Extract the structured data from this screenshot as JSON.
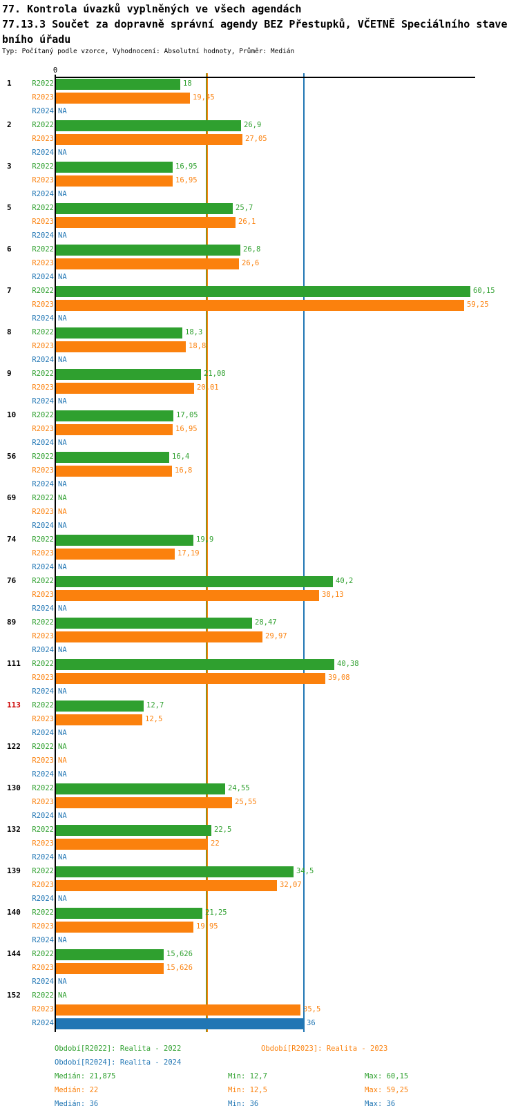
{
  "title": {
    "line1": "77. Kontrola úvazků vyplněných ve všech agendách",
    "line2": "77.13.3 Součet za dopravně správní agendy BEZ Přestupků, VČETNĚ Speciálního stave",
    "line3": "bního úřadu",
    "meta": "Typ: Počítaný podle vzorce, Vyhodnocení: Absolutní hodnoty, Průměr: Medián"
  },
  "chart_data": {
    "type": "bar",
    "orientation": "horizontal",
    "x_range": [
      0,
      61
    ],
    "axis_zero_label": "0",
    "na_label": "NA",
    "grid": "off",
    "series": [
      "R2022",
      "R2023",
      "R2024"
    ],
    "colors": {
      "R2022": "#2FA02F",
      "R2023": "#FB810D",
      "R2024": "#2176B4",
      "highlight": "#CC0000",
      "axis": "#000000"
    },
    "reference_lines": [
      {
        "series": "R2022",
        "stat": "median",
        "value": 21.875,
        "color": "#2FA02F"
      },
      {
        "series": "R2023",
        "stat": "median",
        "value": 22,
        "color": "#FB810D"
      },
      {
        "series": "R2024",
        "stat": "median",
        "value": 36,
        "color": "#2176B4"
      }
    ],
    "groups": [
      {
        "id": "1",
        "highlight": false,
        "values": [
          18,
          19.45,
          null
        ],
        "labels": [
          "18",
          "19,45",
          "NA"
        ]
      },
      {
        "id": "2",
        "highlight": false,
        "values": [
          26.9,
          27.05,
          null
        ],
        "labels": [
          "26,9",
          "27,05",
          "NA"
        ]
      },
      {
        "id": "3",
        "highlight": false,
        "values": [
          16.95,
          16.95,
          null
        ],
        "labels": [
          "16,95",
          "16,95",
          "NA"
        ]
      },
      {
        "id": "5",
        "highlight": false,
        "values": [
          25.7,
          26.1,
          null
        ],
        "labels": [
          "25,7",
          "26,1",
          "NA"
        ]
      },
      {
        "id": "6",
        "highlight": false,
        "values": [
          26.8,
          26.6,
          null
        ],
        "labels": [
          "26,8",
          "26,6",
          "NA"
        ]
      },
      {
        "id": "7",
        "highlight": false,
        "values": [
          60.15,
          59.25,
          null
        ],
        "labels": [
          "60,15",
          "59,25",
          "NA"
        ]
      },
      {
        "id": "8",
        "highlight": false,
        "values": [
          18.3,
          18.8,
          null
        ],
        "labels": [
          "18,3",
          "18,8",
          "NA"
        ]
      },
      {
        "id": "9",
        "highlight": false,
        "values": [
          21.08,
          20.01,
          null
        ],
        "labels": [
          "21,08",
          "20,01",
          "NA"
        ]
      },
      {
        "id": "10",
        "highlight": false,
        "values": [
          17.05,
          16.95,
          null
        ],
        "labels": [
          "17,05",
          "16,95",
          "NA"
        ]
      },
      {
        "id": "56",
        "highlight": false,
        "values": [
          16.4,
          16.8,
          null
        ],
        "labels": [
          "16,4",
          "16,8",
          "NA"
        ]
      },
      {
        "id": "69",
        "highlight": false,
        "values": [
          null,
          null,
          null
        ],
        "labels": [
          "NA",
          "NA",
          "NA"
        ]
      },
      {
        "id": "74",
        "highlight": false,
        "values": [
          19.9,
          17.19,
          null
        ],
        "labels": [
          "19,9",
          "17,19",
          "NA"
        ]
      },
      {
        "id": "76",
        "highlight": false,
        "values": [
          40.2,
          38.13,
          null
        ],
        "labels": [
          "40,2",
          "38,13",
          "NA"
        ]
      },
      {
        "id": "89",
        "highlight": false,
        "values": [
          28.47,
          29.97,
          null
        ],
        "labels": [
          "28,47",
          "29,97",
          "NA"
        ]
      },
      {
        "id": "111",
        "highlight": false,
        "values": [
          40.38,
          39.08,
          null
        ],
        "labels": [
          "40,38",
          "39,08",
          "NA"
        ]
      },
      {
        "id": "113",
        "highlight": true,
        "values": [
          12.7,
          12.5,
          null
        ],
        "labels": [
          "12,7",
          "12,5",
          "NA"
        ]
      },
      {
        "id": "122",
        "highlight": false,
        "values": [
          null,
          null,
          null
        ],
        "labels": [
          "NA",
          "NA",
          "NA"
        ]
      },
      {
        "id": "130",
        "highlight": false,
        "values": [
          24.55,
          25.55,
          null
        ],
        "labels": [
          "24,55",
          "25,55",
          "NA"
        ]
      },
      {
        "id": "132",
        "highlight": false,
        "values": [
          22.5,
          22,
          null
        ],
        "labels": [
          "22,5",
          "22",
          "NA"
        ]
      },
      {
        "id": "139",
        "highlight": false,
        "values": [
          34.5,
          32.07,
          null
        ],
        "labels": [
          "34,5",
          "32,07",
          "NA"
        ]
      },
      {
        "id": "140",
        "highlight": false,
        "values": [
          21.25,
          19.95,
          null
        ],
        "labels": [
          "21,25",
          "19,95",
          "NA"
        ]
      },
      {
        "id": "144",
        "highlight": false,
        "values": [
          15.626,
          15.626,
          null
        ],
        "labels": [
          "15,626",
          "15,626",
          "NA"
        ]
      },
      {
        "id": "152",
        "highlight": false,
        "values": [
          null,
          35.5,
          36
        ],
        "labels": [
          "NA",
          "35,5",
          "36"
        ]
      }
    ]
  },
  "legend": {
    "items": [
      {
        "series": "R2022",
        "label": "Období[R2022]: Realita - 2022"
      },
      {
        "series": "R2023",
        "label": "Období[R2023]: Realita - 2023"
      },
      {
        "series": "R2024",
        "label": "Období[R2024]: Realita - 2024"
      }
    ]
  },
  "stats": {
    "rows": [
      {
        "series": "R2022",
        "median": "Medián: 21,875",
        "min": "Min: 12,7",
        "max": "Max: 60,15"
      },
      {
        "series": "R2023",
        "median": "Medián: 22",
        "min": "Min: 12,5",
        "max": "Max: 59,25"
      },
      {
        "series": "R2024",
        "median": "Medián: 36",
        "min": "Min: 36",
        "max": "Max: 36"
      }
    ]
  }
}
